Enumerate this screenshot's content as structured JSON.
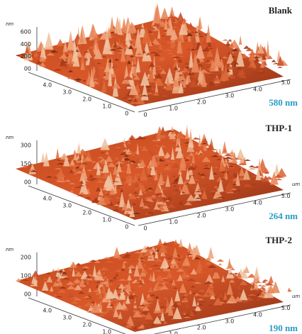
{
  "panels": [
    {
      "title": "Blank",
      "z_unit": "nm",
      "z_ticks": [
        "600",
        "400",
        "200",
        "00"
      ],
      "x_ticks": [
        "4.0",
        "3.0",
        "2.0",
        "1.0",
        "0"
      ],
      "y_ticks": [
        "0",
        "1.0",
        "2.0",
        "3.0",
        "4.0",
        "5.0"
      ],
      "height_label": "580 nm"
    },
    {
      "title": "THP-1",
      "z_unit": "nm",
      "z_ticks": [
        "300",
        "150",
        "00"
      ],
      "x_ticks": [
        "4.0",
        "3.0",
        "2.0",
        "1.0",
        "0"
      ],
      "y_ticks": [
        "0",
        "1.0",
        "2.0",
        "3.0",
        "4.0",
        "5.0"
      ],
      "y_unit": "um",
      "height_label": "264 nm"
    },
    {
      "title": "THP-2",
      "z_unit": "nm",
      "z_ticks": [
        "200",
        "100",
        "00"
      ],
      "x_ticks": [
        "4.0",
        "3.0",
        "2.0",
        "1.0"
      ],
      "y_ticks": [
        "1.0",
        "2.0",
        "3.0",
        "4.0",
        "5.0"
      ],
      "y_unit": "um",
      "height_label": "190 nm"
    }
  ]
}
